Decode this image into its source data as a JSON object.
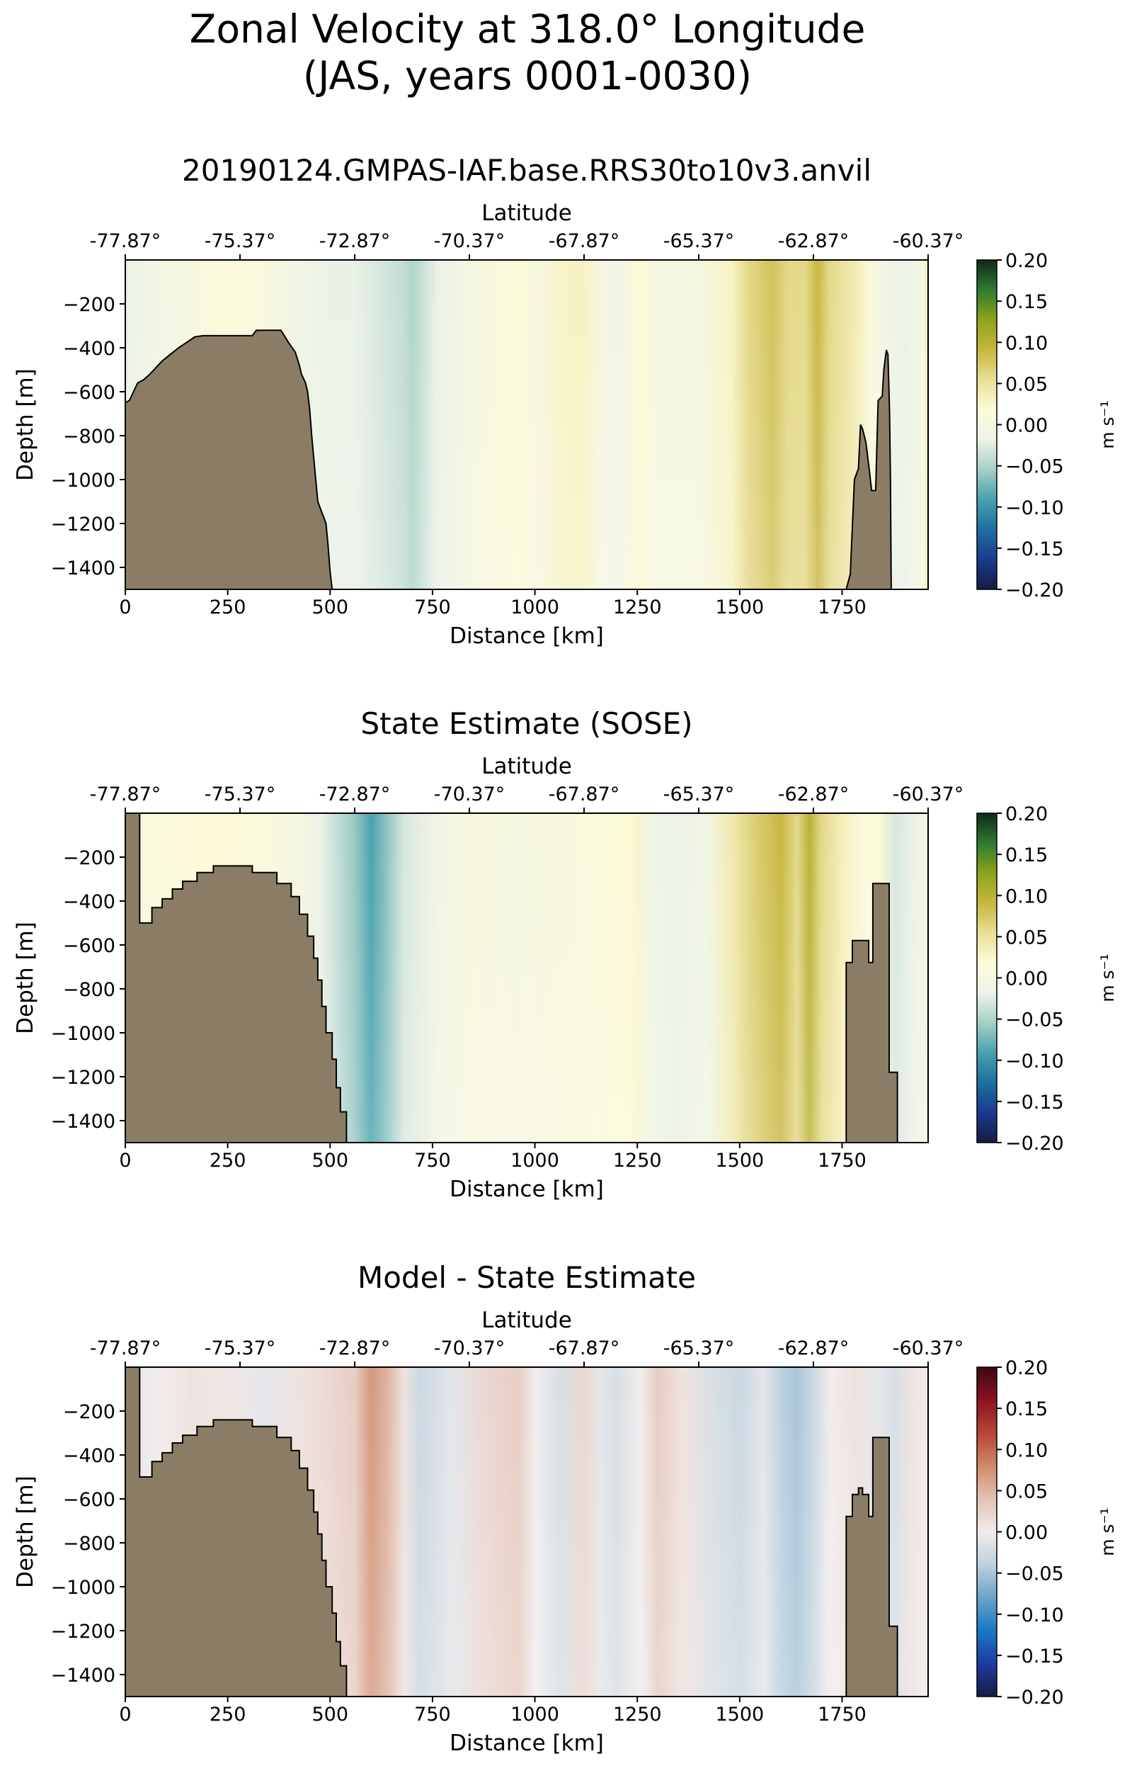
{
  "figure": {
    "title_line1": "Zonal Velocity at 318.0° Longitude",
    "title_line2": "(JAS, years 0001-0030)"
  },
  "chart_data": [
    {
      "type": "heatmap",
      "title": "20190124.GMPAS-IAF.base.RRS30to10v3.anvil",
      "xlabel": "Distance [km]",
      "ylabel": "Depth [m]",
      "top_xlabel": "Latitude",
      "xlim": [
        0,
        1960
      ],
      "ylim": [
        -1500,
        0
      ],
      "x_ticks": [
        0,
        250,
        500,
        750,
        1000,
        1250,
        1500,
        1750
      ],
      "y_ticks": [
        -200,
        -400,
        -600,
        -800,
        -1000,
        -1200,
        -1400
      ],
      "top_ticks": [
        "-77.87°",
        "-75.37°",
        "-72.87°",
        "-70.37°",
        "-67.87°",
        "-65.37°",
        "-62.87°",
        "-60.37°"
      ],
      "colorbar": {
        "label": "m s⁻¹",
        "range": [
          -0.2,
          0.2
        ],
        "ticks": [
          "0.20",
          "0.15",
          "0.10",
          "0.05",
          "0.00",
          "−0.05",
          "−0.10",
          "−0.15",
          "−0.20"
        ],
        "colormap": "balance-green"
      },
      "velocity_profile": {
        "x_km": [
          0,
          60,
          140,
          200,
          280,
          350,
          420,
          500,
          560,
          620,
          680,
          700,
          760,
          850,
          960,
          1000,
          1080,
          1120,
          1160,
          1200,
          1260,
          1300,
          1400,
          1480,
          1520,
          1580,
          1620,
          1660,
          1690,
          1720,
          1780,
          1820,
          1850,
          1900,
          1950,
          1960
        ],
        "u_ms": [
          -0.02,
          -0.01,
          0.0,
          0.01,
          0.015,
          0.005,
          -0.01,
          -0.02,
          -0.02,
          -0.03,
          -0.04,
          -0.05,
          -0.02,
          0.0,
          0.02,
          0.0,
          0.03,
          0.03,
          0.0,
          -0.01,
          0.02,
          0.0,
          0.0,
          0.03,
          0.06,
          0.08,
          0.06,
          0.06,
          0.09,
          0.06,
          0.04,
          0.01,
          -0.01,
          -0.02,
          0.0,
          0.04
        ]
      },
      "land_left": [
        [
          0,
          -650
        ],
        [
          10,
          -640
        ],
        [
          20,
          -600
        ],
        [
          30,
          -560
        ],
        [
          45,
          -545
        ],
        [
          60,
          -520
        ],
        [
          75,
          -490
        ],
        [
          90,
          -460
        ],
        [
          110,
          -430
        ],
        [
          130,
          -400
        ],
        [
          150,
          -375
        ],
        [
          170,
          -350
        ],
        [
          190,
          -345
        ],
        [
          310,
          -345
        ],
        [
          320,
          -320
        ],
        [
          380,
          -320
        ],
        [
          390,
          -350
        ],
        [
          400,
          -380
        ],
        [
          415,
          -420
        ],
        [
          425,
          -480
        ],
        [
          430,
          -520
        ],
        [
          440,
          -560
        ],
        [
          445,
          -600
        ],
        [
          450,
          -680
        ],
        [
          455,
          -800
        ],
        [
          460,
          -900
        ],
        [
          465,
          -1000
        ],
        [
          470,
          -1100
        ],
        [
          480,
          -1150
        ],
        [
          490,
          -1200
        ],
        [
          495,
          -1300
        ],
        [
          500,
          -1420
        ],
        [
          505,
          -1500
        ],
        [
          0,
          -1500
        ]
      ],
      "land_right": [
        [
          1760,
          -1500
        ],
        [
          1770,
          -1430
        ],
        [
          1780,
          -1000
        ],
        [
          1790,
          -950
        ],
        [
          1795,
          -750
        ],
        [
          1800,
          -770
        ],
        [
          1808,
          -830
        ],
        [
          1816,
          -950
        ],
        [
          1822,
          -1050
        ],
        [
          1832,
          -1050
        ],
        [
          1838,
          -640
        ],
        [
          1848,
          -620
        ],
        [
          1852,
          -500
        ],
        [
          1858,
          -410
        ],
        [
          1862,
          -430
        ],
        [
          1866,
          -700
        ],
        [
          1868,
          -1000
        ],
        [
          1870,
          -1500
        ]
      ]
    },
    {
      "type": "heatmap",
      "title": "State Estimate (SOSE)",
      "xlabel": "Distance [km]",
      "ylabel": "Depth [m]",
      "top_xlabel": "Latitude",
      "xlim": [
        0,
        1960
      ],
      "ylim": [
        -1500,
        0
      ],
      "x_ticks": [
        0,
        250,
        500,
        750,
        1000,
        1250,
        1500,
        1750
      ],
      "y_ticks": [
        -200,
        -400,
        -600,
        -800,
        -1000,
        -1200,
        -1400
      ],
      "top_ticks": [
        "-77.87°",
        "-75.37°",
        "-72.87°",
        "-70.37°",
        "-67.87°",
        "-65.37°",
        "-62.87°",
        "-60.37°"
      ],
      "colorbar": {
        "label": "m s⁻¹",
        "range": [
          -0.2,
          0.2
        ],
        "ticks": [
          "0.20",
          "0.15",
          "0.10",
          "0.05",
          "0.00",
          "−0.05",
          "−0.10",
          "−0.15",
          "−0.20"
        ],
        "colormap": "balance-green"
      },
      "velocity_profile": {
        "x_km": [
          0,
          60,
          150,
          250,
          330,
          420,
          480,
          560,
          600,
          630,
          680,
          760,
          850,
          950,
          1050,
          1150,
          1230,
          1250,
          1280,
          1340,
          1420,
          1480,
          1540,
          1600,
          1640,
          1670,
          1700,
          1760,
          1800,
          1840,
          1880,
          1920,
          1960
        ],
        "u_ms": [
          0.0,
          0.01,
          0.015,
          0.02,
          0.01,
          0.0,
          -0.02,
          -0.06,
          -0.09,
          -0.07,
          -0.03,
          -0.01,
          0.005,
          0.0,
          0.005,
          0.01,
          0.02,
          0.025,
          -0.01,
          -0.02,
          -0.01,
          0.04,
          0.07,
          0.09,
          0.06,
          0.1,
          0.06,
          0.03,
          0.01,
          0.02,
          -0.03,
          -0.02,
          0.0
        ]
      },
      "land_left": [
        [
          0,
          -1500
        ],
        [
          0,
          0
        ],
        [
          35,
          0
        ],
        [
          35,
          -500
        ],
        [
          65,
          -500
        ],
        [
          65,
          -430
        ],
        [
          90,
          -430
        ],
        [
          90,
          -390
        ],
        [
          115,
          -390
        ],
        [
          115,
          -345
        ],
        [
          140,
          -345
        ],
        [
          140,
          -310
        ],
        [
          175,
          -310
        ],
        [
          175,
          -270
        ],
        [
          215,
          -270
        ],
        [
          215,
          -240
        ],
        [
          310,
          -240
        ],
        [
          310,
          -270
        ],
        [
          370,
          -270
        ],
        [
          370,
          -320
        ],
        [
          405,
          -320
        ],
        [
          405,
          -380
        ],
        [
          425,
          -380
        ],
        [
          425,
          -460
        ],
        [
          445,
          -460
        ],
        [
          445,
          -560
        ],
        [
          460,
          -560
        ],
        [
          460,
          -660
        ],
        [
          470,
          -660
        ],
        [
          470,
          -760
        ],
        [
          480,
          -760
        ],
        [
          480,
          -880
        ],
        [
          490,
          -880
        ],
        [
          490,
          -1000
        ],
        [
          505,
          -1000
        ],
        [
          505,
          -1120
        ],
        [
          515,
          -1120
        ],
        [
          515,
          -1250
        ],
        [
          525,
          -1250
        ],
        [
          525,
          -1360
        ],
        [
          540,
          -1360
        ],
        [
          540,
          -1500
        ]
      ],
      "land_right": [
        [
          1760,
          -1500
        ],
        [
          1760,
          -680
        ],
        [
          1775,
          -680
        ],
        [
          1775,
          -580
        ],
        [
          1815,
          -580
        ],
        [
          1815,
          -680
        ],
        [
          1825,
          -680
        ],
        [
          1825,
          -320
        ],
        [
          1865,
          -320
        ],
        [
          1865,
          -1180
        ],
        [
          1885,
          -1180
        ],
        [
          1885,
          -1500
        ]
      ]
    },
    {
      "type": "heatmap",
      "title": "Model - State Estimate",
      "xlabel": "Distance [km]",
      "ylabel": "Depth [m]",
      "top_xlabel": "Latitude",
      "xlim": [
        0,
        1960
      ],
      "ylim": [
        -1500,
        0
      ],
      "x_ticks": [
        0,
        250,
        500,
        750,
        1000,
        1250,
        1500,
        1750
      ],
      "y_ticks": [
        -200,
        -400,
        -600,
        -800,
        -1000,
        -1200,
        -1400
      ],
      "top_ticks": [
        "-77.87°",
        "-75.37°",
        "-72.87°",
        "-70.37°",
        "-67.87°",
        "-65.37°",
        "-62.87°",
        "-60.37°"
      ],
      "colorbar": {
        "label": "m s⁻¹",
        "range": [
          -0.2,
          0.2
        ],
        "ticks": [
          "0.20",
          "0.15",
          "0.10",
          "0.05",
          "0.00",
          "−0.05",
          "−0.10",
          "−0.15",
          "−0.20"
        ],
        "colormap": "balance"
      },
      "velocity_profile": {
        "x_km": [
          0,
          80,
          160,
          260,
          340,
          420,
          500,
          560,
          600,
          640,
          680,
          720,
          800,
          880,
          960,
          1000,
          1060,
          1120,
          1160,
          1200,
          1260,
          1300,
          1360,
          1440,
          1500,
          1560,
          1600,
          1640,
          1680,
          1720,
          1780,
          1840,
          1880,
          1920,
          1960
        ],
        "u_ms": [
          -0.01,
          0.0,
          0.01,
          0.005,
          -0.01,
          0.01,
          0.02,
          0.03,
          0.07,
          0.05,
          0.01,
          -0.03,
          -0.01,
          0.02,
          0.03,
          0.0,
          -0.02,
          0.02,
          -0.01,
          -0.02,
          0.0,
          0.03,
          0.01,
          -0.02,
          -0.03,
          -0.01,
          -0.04,
          -0.05,
          -0.03,
          0.0,
          0.01,
          -0.01,
          -0.02,
          0.01,
          0.0
        ]
      },
      "land_left": [
        [
          0,
          -1500
        ],
        [
          0,
          0
        ],
        [
          35,
          0
        ],
        [
          35,
          -500
        ],
        [
          65,
          -500
        ],
        [
          65,
          -430
        ],
        [
          90,
          -430
        ],
        [
          90,
          -390
        ],
        [
          115,
          -390
        ],
        [
          115,
          -345
        ],
        [
          140,
          -345
        ],
        [
          140,
          -310
        ],
        [
          175,
          -310
        ],
        [
          175,
          -270
        ],
        [
          215,
          -270
        ],
        [
          215,
          -240
        ],
        [
          310,
          -240
        ],
        [
          310,
          -270
        ],
        [
          370,
          -270
        ],
        [
          370,
          -320
        ],
        [
          405,
          -320
        ],
        [
          405,
          -380
        ],
        [
          425,
          -380
        ],
        [
          425,
          -460
        ],
        [
          445,
          -460
        ],
        [
          445,
          -560
        ],
        [
          460,
          -560
        ],
        [
          460,
          -660
        ],
        [
          470,
          -660
        ],
        [
          470,
          -760
        ],
        [
          480,
          -760
        ],
        [
          480,
          -880
        ],
        [
          490,
          -880
        ],
        [
          490,
          -1000
        ],
        [
          505,
          -1000
        ],
        [
          505,
          -1120
        ],
        [
          515,
          -1120
        ],
        [
          515,
          -1250
        ],
        [
          525,
          -1250
        ],
        [
          525,
          -1360
        ],
        [
          540,
          -1360
        ],
        [
          540,
          -1500
        ]
      ],
      "land_right": [
        [
          1760,
          -1500
        ],
        [
          1760,
          -680
        ],
        [
          1775,
          -680
        ],
        [
          1775,
          -580
        ],
        [
          1790,
          -580
        ],
        [
          1790,
          -550
        ],
        [
          1800,
          -550
        ],
        [
          1800,
          -580
        ],
        [
          1815,
          -580
        ],
        [
          1815,
          -680
        ],
        [
          1825,
          -680
        ],
        [
          1825,
          -320
        ],
        [
          1865,
          -320
        ],
        [
          1865,
          -1180
        ],
        [
          1885,
          -1180
        ],
        [
          1885,
          -1500
        ]
      ]
    }
  ],
  "colors": {
    "land": "#8b7d65",
    "balance_green": [
      "#141d43",
      "#1b3a8f",
      "#1e6fa0",
      "#48a1ae",
      "#a6cfc6",
      "#eef3e8",
      "#fdfbd9",
      "#e9df96",
      "#c7b640",
      "#8da41a",
      "#2e7a32",
      "#12281b"
    ],
    "balance": [
      "#181c43",
      "#1f3ba0",
      "#1a77c6",
      "#6ba3c9",
      "#bdd1de",
      "#f1ecec",
      "#e4c2b5",
      "#cf8a6a",
      "#b64535",
      "#8b1322",
      "#3c0912"
    ]
  }
}
